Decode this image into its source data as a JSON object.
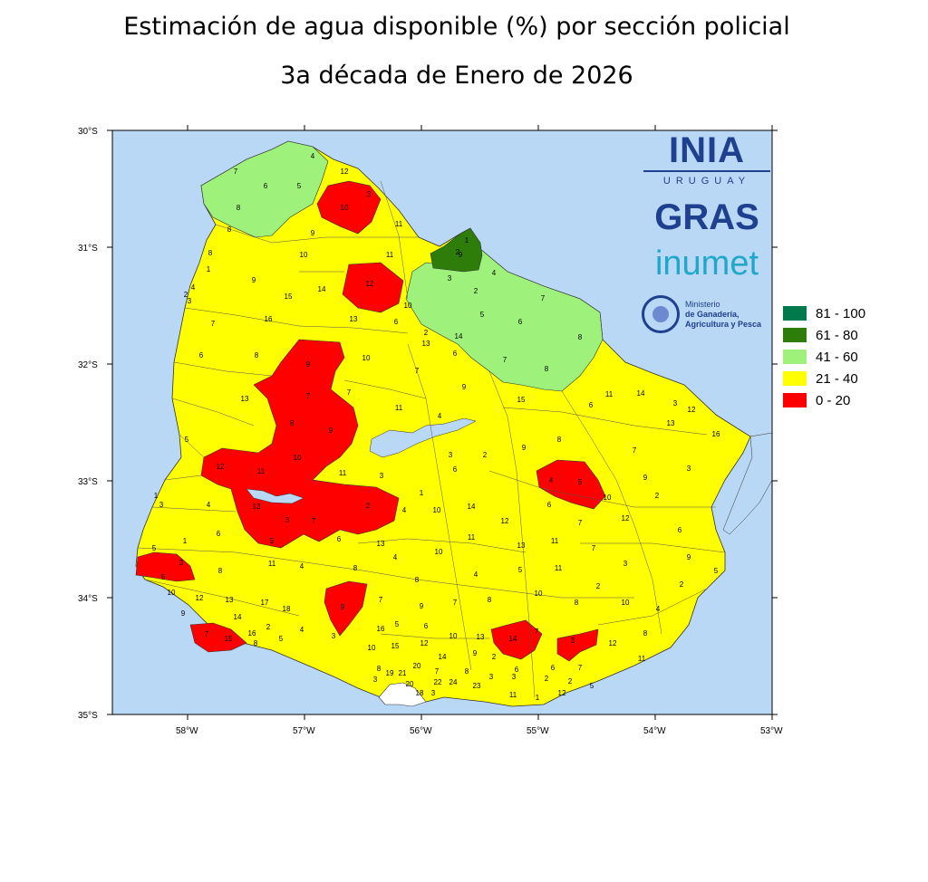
{
  "map": {
    "title": "Estimación de agua disponible (%) por sección policial",
    "subtitle": "3a década de Enero de 2026",
    "lat_ticks": [
      "30°S",
      "31°S",
      "32°S",
      "33°S",
      "34°S",
      "35°S"
    ],
    "lon_ticks": [
      "58°W",
      "57°W",
      "56°W",
      "55°W",
      "54°W",
      "53°W"
    ],
    "legend": [
      {
        "label": "81 - 100",
        "color": "#007a4d"
      },
      {
        "label": "61 - 80",
        "color": "#2e7d0b"
      },
      {
        "label": "41 - 60",
        "color": "#9ef27c"
      },
      {
        "label": "21 - 40",
        "color": "#ffff00"
      },
      {
        "label": "0 - 20",
        "color": "#ff0000"
      }
    ],
    "colors": {
      "water": "#b9d8f5",
      "land": "#ffff00",
      "border": "#333333"
    },
    "logos": {
      "ina": "INIA",
      "ina_sub": "URUGUAY",
      "gras": "GRAS",
      "inumet": "inumet",
      "ministry_1": "Ministerio",
      "ministry_2": "de Ganadería,",
      "ministry_3": "Agricultura y Pesca"
    }
  }
}
